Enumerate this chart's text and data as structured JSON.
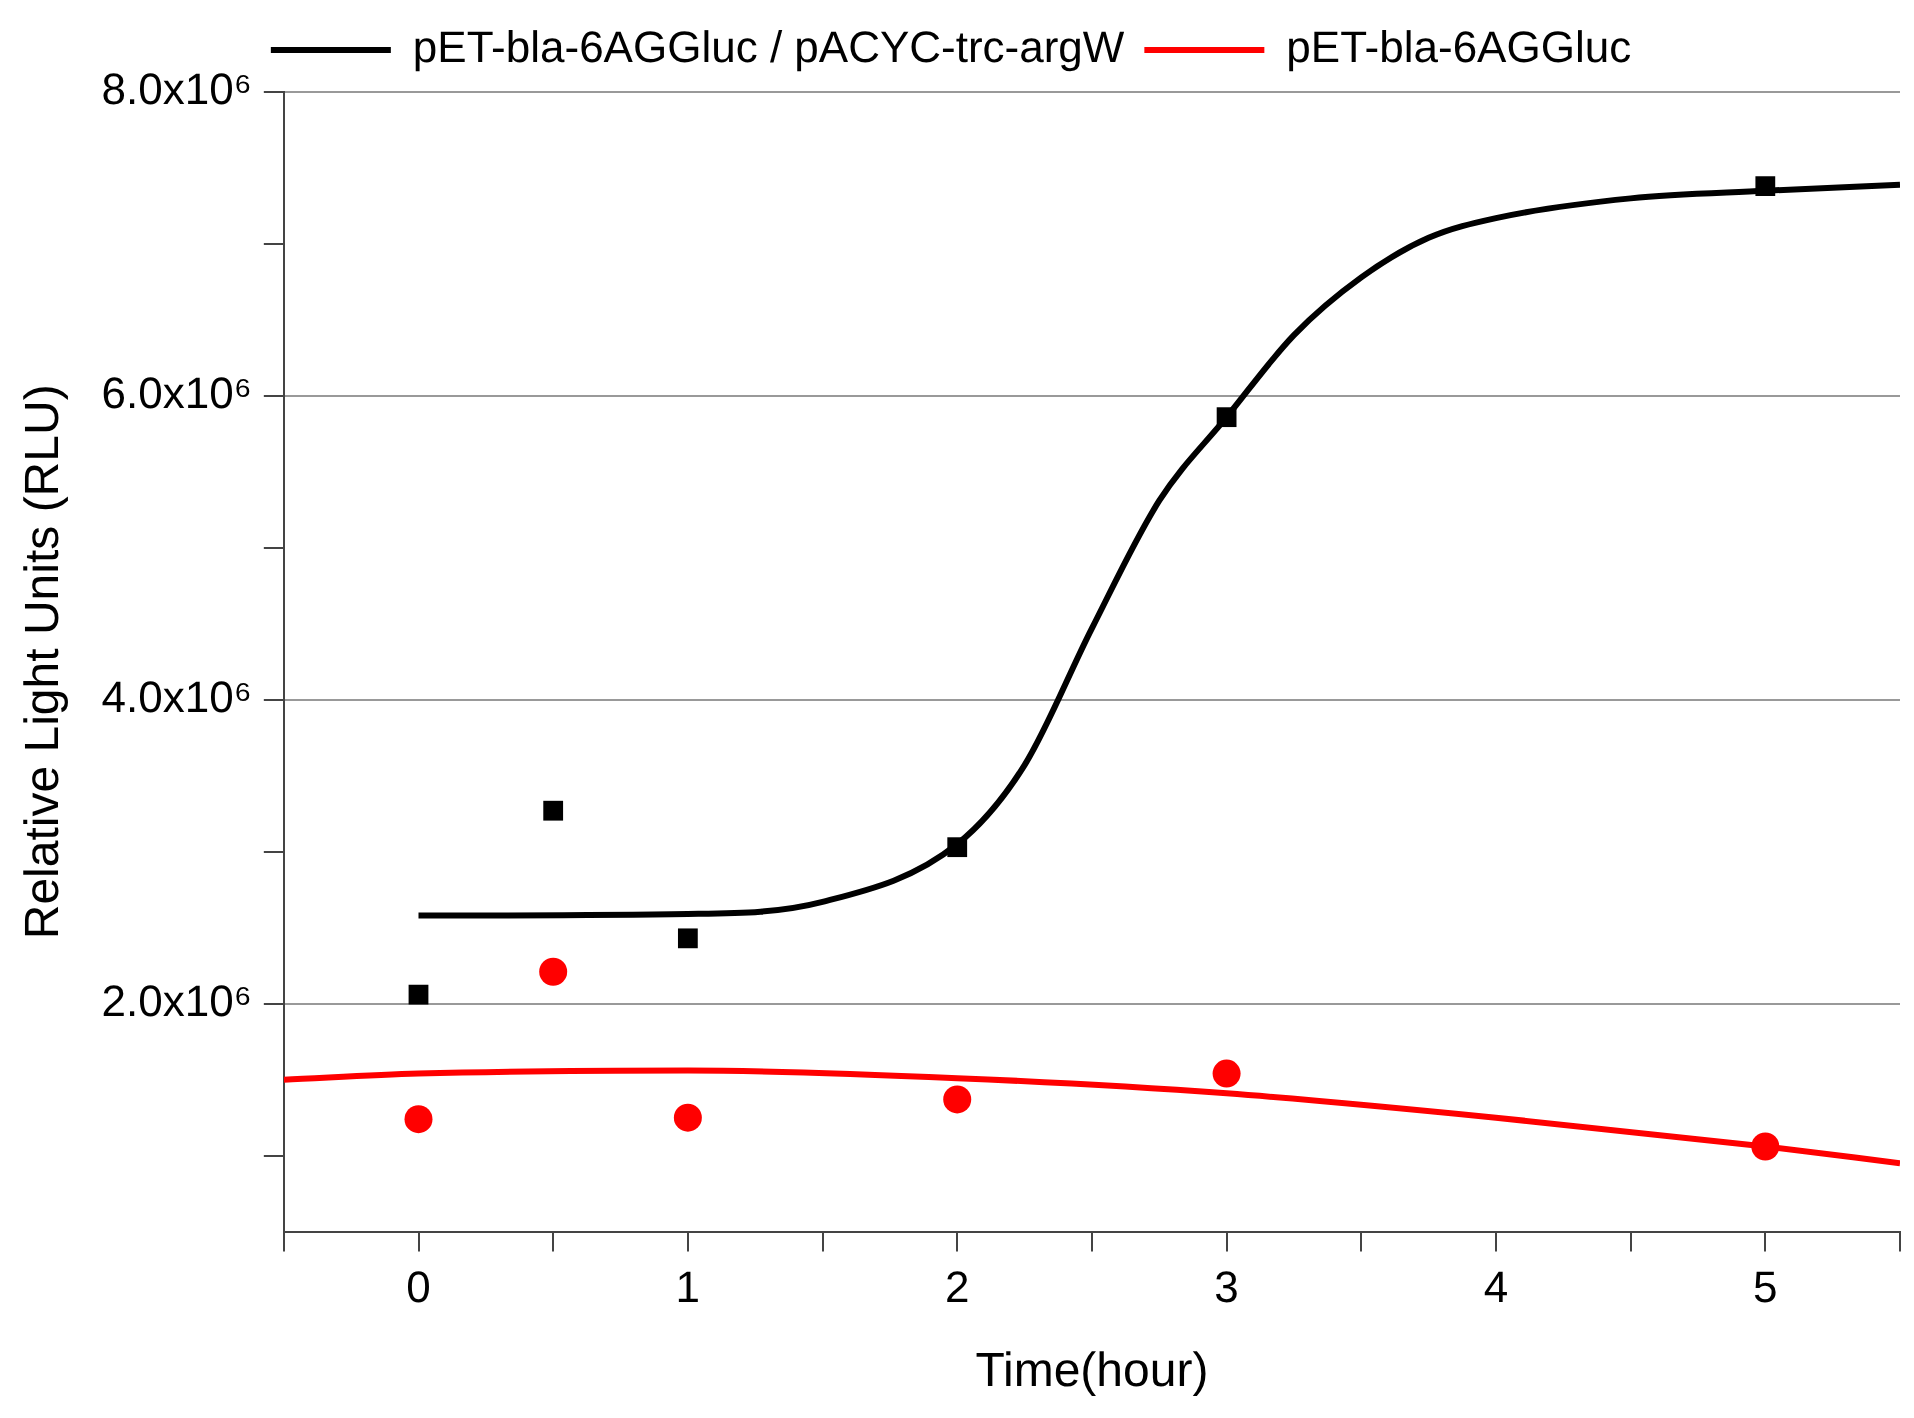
{
  "chart_data": {
    "type": "scatter",
    "xlabel": "Time(hour)",
    "ylabel": "Relative Light Units (RLU)",
    "xlim": [
      -0.5,
      5.5
    ],
    "ylim": [
      500000,
      8000000
    ],
    "xticks": [
      {
        "value": -0.5,
        "label": null
      },
      0,
      {
        "value": 0.5,
        "label": null
      },
      1,
      {
        "value": 1.5,
        "label": null
      },
      2,
      {
        "value": 2.5,
        "label": null
      },
      3,
      {
        "value": 3.5,
        "label": null
      },
      4,
      {
        "value": 4.5,
        "label": null
      },
      5,
      {
        "value": 5.5,
        "label": null
      }
    ],
    "yticks": [
      {
        "value": 1000000,
        "label": null
      },
      {
        "value": 2000000,
        "label": "2.0x10⁶"
      },
      {
        "value": 3000000,
        "label": null
      },
      {
        "value": 4000000,
        "label": "4.0x10⁶"
      },
      {
        "value": 5000000,
        "label": null
      },
      {
        "value": 6000000,
        "label": "6.0x10⁶"
      },
      {
        "value": 7000000,
        "label": null
      },
      {
        "value": 8000000,
        "label": "8.0x10⁶"
      }
    ],
    "grid": "y",
    "legend": "top",
    "series": [
      {
        "name": "pET-bla-6AGGluc / pACYC-trc-argW",
        "type": "line",
        "marker": "none",
        "line_style": "solid",
        "color": "#000000",
        "x": [
          0,
          1,
          1.5,
          2,
          2.25,
          2.5,
          2.75,
          3,
          3.25,
          3.5,
          3.75,
          4,
          4.5,
          5,
          5.5
        ],
        "values": [
          2580000,
          2590000,
          2670000,
          3050000,
          3570000,
          4470000,
          5310000,
          5860000,
          6400000,
          6780000,
          7040000,
          7170000,
          7300000,
          7350000,
          7390000
        ]
      },
      {
        "name": "pET-bla-6AGGluc",
        "type": "line",
        "marker": "none",
        "line_style": "solid",
        "color": "#ff0000",
        "x": [
          -0.5,
          0,
          1,
          2,
          3,
          4,
          5,
          5.5
        ],
        "values": [
          1500000,
          1540000,
          1560000,
          1510000,
          1410000,
          1250000,
          1060000,
          950000
        ]
      },
      {
        "marker": "square",
        "color": "#000000",
        "x": [
          0,
          0.5,
          1,
          2,
          3,
          5
        ],
        "values": [
          2060000,
          3270000,
          2430000,
          3030000,
          5860000,
          7380000
        ]
      },
      {
        "marker": "circle",
        "color": "#ff0000",
        "x": [
          0,
          0.5,
          1,
          2,
          3,
          5
        ],
        "values": [
          1240000,
          2210000,
          1250000,
          1370000,
          1540000,
          1060000
        ]
      }
    ]
  }
}
